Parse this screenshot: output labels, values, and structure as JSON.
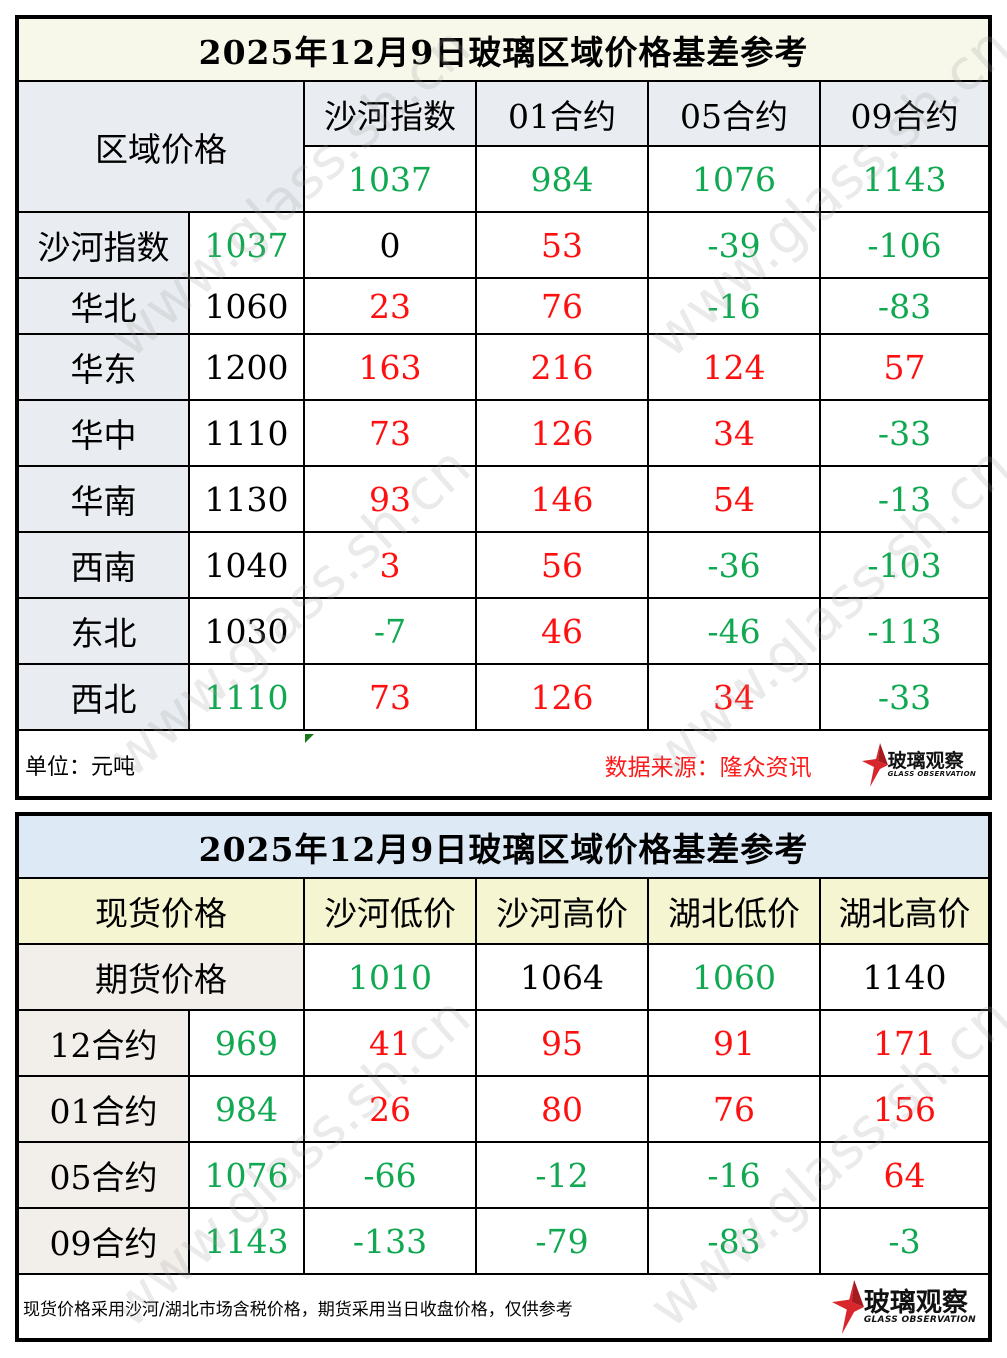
{
  "table1": {
    "title": "2025年12月9日玻璃区域价格基差参考",
    "corner_label": "区域价格",
    "columns": [
      "沙河指数",
      "01合约",
      "05合约",
      "09合约"
    ],
    "column_prices": [
      "1037",
      "984",
      "1076",
      "1143"
    ],
    "rows": [
      {
        "region": "沙河指数",
        "price": "1037",
        "values": [
          "0",
          "53",
          "-39",
          "-106"
        ]
      },
      {
        "region": "华北",
        "price": "1060",
        "values": [
          "23",
          "76",
          "-16",
          "-83"
        ]
      },
      {
        "region": "华东",
        "price": "1200",
        "values": [
          "163",
          "216",
          "124",
          "57"
        ]
      },
      {
        "region": "华中",
        "price": "1110",
        "values": [
          "73",
          "126",
          "34",
          "-33"
        ]
      },
      {
        "region": "华南",
        "price": "1130",
        "values": [
          "93",
          "146",
          "54",
          "-13"
        ]
      },
      {
        "region": "西南",
        "price": "1040",
        "values": [
          "3",
          "56",
          "-36",
          "-103"
        ]
      },
      {
        "region": "东北",
        "price": "1030",
        "values": [
          "-7",
          "46",
          "-46",
          "-113"
        ]
      },
      {
        "region": "西北",
        "price": "1110",
        "values": [
          "73",
          "126",
          "34",
          "-33"
        ]
      }
    ],
    "footer": {
      "unit": "单位：元吨",
      "source": "数据来源：隆众资讯",
      "logo_cn": "玻璃观察",
      "logo_en": "GLASS OBSERVATION"
    }
  },
  "table2": {
    "title": "2025年12月9日玻璃区域价格基差参考",
    "spot_label": "现货价格",
    "futures_label": "期货价格",
    "columns": [
      "沙河低价",
      "沙河高价",
      "湖北低价",
      "湖北高价"
    ],
    "column_prices": [
      "1010",
      "1064",
      "1060",
      "1140"
    ],
    "rows": [
      {
        "contract": "12合约",
        "price": "969",
        "values": [
          "41",
          "95",
          "91",
          "171"
        ]
      },
      {
        "contract": "01合约",
        "price": "984",
        "values": [
          "26",
          "80",
          "76",
          "156"
        ]
      },
      {
        "contract": "05合约",
        "price": "1076",
        "values": [
          "-66",
          "-12",
          "-16",
          "64"
        ]
      },
      {
        "contract": "09合约",
        "price": "1143",
        "values": [
          "-133",
          "-79",
          "-83",
          "-3"
        ]
      }
    ],
    "footer": {
      "note": "现货价格采用沙河/湖北市场含税价格，期货采用当日收盘价格，仅供参考",
      "logo_cn": "玻璃观察",
      "logo_en": "GLASS OBSERVATION"
    }
  },
  "watermark": "www.glass.sh.cn",
  "colors": {
    "positive": "#ff1010",
    "negative": "#10a850",
    "title1_bg": "#f7f8ea",
    "title2_bg": "#ddeaf6",
    "header_gray": "#e9edf1",
    "header_yellow": "#f5f5d2"
  }
}
